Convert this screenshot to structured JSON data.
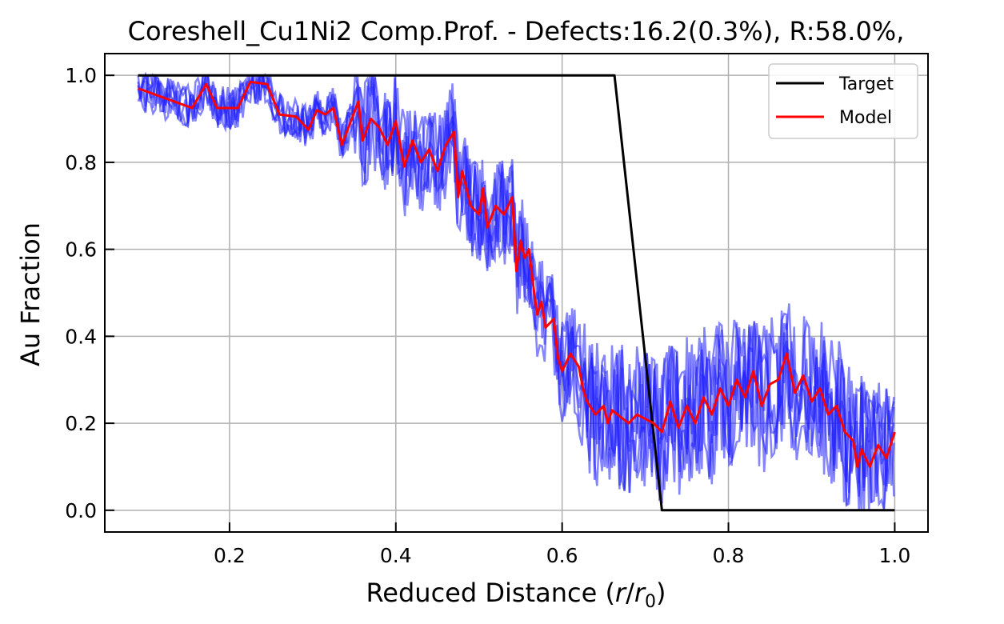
{
  "chart_data": {
    "type": "line",
    "title": "Coreshell_Cu1Ni2 Comp.Prof. - Defects:16.2(0.3%), R:58.0%,",
    "xlabel_prefix": "Reduced Distance (",
    "xlabel_r": "r",
    "xlabel_slash": "/",
    "xlabel_r0": "r",
    "xlabel_sub": "0",
    "xlabel_suffix": ")",
    "ylabel": "Au Fraction",
    "xlim": [
      0.05,
      1.04
    ],
    "ylim": [
      -0.05,
      1.05
    ],
    "xticks": [
      0.2,
      0.4,
      0.6,
      0.8,
      1.0
    ],
    "xtick_labels": [
      "0.2",
      "0.4",
      "0.6",
      "0.8",
      "1.0"
    ],
    "yticks": [
      0.0,
      0.2,
      0.4,
      0.6,
      0.8,
      1.0
    ],
    "ytick_labels": [
      "0.0",
      "0.2",
      "0.4",
      "0.6",
      "0.8",
      "1.0"
    ],
    "grid": true,
    "legend_position": "top-right",
    "colors": {
      "target": "#000000",
      "model": "#ff0000",
      "samples": "#2020ff"
    },
    "series": [
      {
        "name": "Target",
        "x": [
          0.09,
          0.663,
          0.72,
          1.0
        ],
        "y": [
          1.0,
          1.0,
          0.0,
          0.0
        ]
      },
      {
        "name": "Model",
        "x": [
          0.09,
          0.155,
          0.172,
          0.185,
          0.21,
          0.225,
          0.245,
          0.26,
          0.28,
          0.295,
          0.305,
          0.315,
          0.325,
          0.335,
          0.345,
          0.355,
          0.36,
          0.37,
          0.38,
          0.39,
          0.4,
          0.41,
          0.42,
          0.43,
          0.44,
          0.45,
          0.46,
          0.47,
          0.475,
          0.48,
          0.49,
          0.5,
          0.505,
          0.51,
          0.52,
          0.53,
          0.54,
          0.545,
          0.55,
          0.555,
          0.56,
          0.565,
          0.57,
          0.575,
          0.58,
          0.59,
          0.595,
          0.6,
          0.61,
          0.62,
          0.625,
          0.63,
          0.64,
          0.65,
          0.655,
          0.66,
          0.68,
          0.69,
          0.71,
          0.72,
          0.73,
          0.74,
          0.75,
          0.76,
          0.77,
          0.78,
          0.79,
          0.8,
          0.81,
          0.82,
          0.83,
          0.84,
          0.85,
          0.86,
          0.87,
          0.88,
          0.89,
          0.9,
          0.91,
          0.92,
          0.93,
          0.94,
          0.95,
          0.955,
          0.96,
          0.97,
          0.98,
          0.99,
          1.0
        ],
        "y": [
          0.97,
          0.925,
          0.98,
          0.925,
          0.925,
          0.985,
          0.98,
          0.91,
          0.905,
          0.875,
          0.92,
          0.91,
          0.925,
          0.84,
          0.89,
          0.94,
          0.85,
          0.9,
          0.88,
          0.84,
          0.895,
          0.79,
          0.85,
          0.8,
          0.83,
          0.78,
          0.84,
          0.87,
          0.72,
          0.78,
          0.7,
          0.68,
          0.74,
          0.65,
          0.7,
          0.68,
          0.72,
          0.55,
          0.62,
          0.58,
          0.6,
          0.52,
          0.45,
          0.48,
          0.42,
          0.44,
          0.35,
          0.32,
          0.36,
          0.33,
          0.28,
          0.25,
          0.22,
          0.24,
          0.2,
          0.23,
          0.2,
          0.22,
          0.2,
          0.18,
          0.25,
          0.19,
          0.24,
          0.2,
          0.26,
          0.22,
          0.28,
          0.24,
          0.3,
          0.26,
          0.32,
          0.24,
          0.29,
          0.3,
          0.36,
          0.27,
          0.31,
          0.25,
          0.28,
          0.22,
          0.24,
          0.18,
          0.16,
          0.1,
          0.14,
          0.1,
          0.15,
          0.12,
          0.18
        ]
      }
    ]
  },
  "legend": {
    "items": [
      {
        "label": "Target",
        "color": "#000000"
      },
      {
        "label": "Model",
        "color": "#ff0000"
      }
    ]
  }
}
